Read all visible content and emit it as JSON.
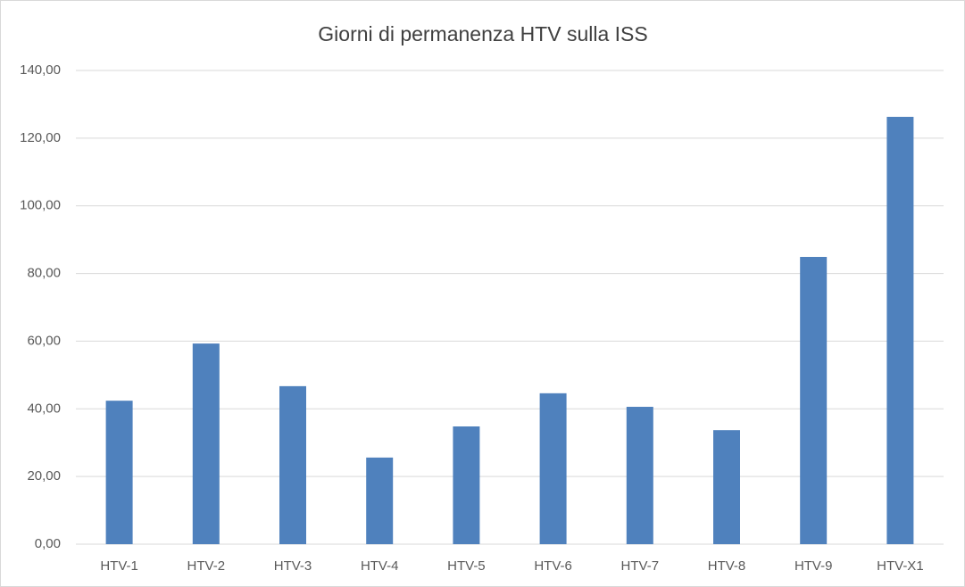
{
  "chart_data": {
    "type": "bar",
    "title": "Giorni di permanenza HTV sulla ISS",
    "categories": [
      "HTV-1",
      "HTV-2",
      "HTV-3",
      "HTV-4",
      "HTV-5",
      "HTV-6",
      "HTV-7",
      "HTV-8",
      "HTV-9",
      "HTV-X1"
    ],
    "values": [
      42.4,
      59.3,
      46.7,
      25.6,
      34.8,
      44.6,
      40.6,
      33.7,
      84.9,
      126.3
    ],
    "color": "#4f81bd",
    "ylim": [
      0,
      140
    ],
    "yticks": [
      {
        "value": 0,
        "label": "0,00"
      },
      {
        "value": 20,
        "label": "20,00"
      },
      {
        "value": 40,
        "label": "40,00"
      },
      {
        "value": 60,
        "label": "60,00"
      },
      {
        "value": 80,
        "label": "80,00"
      },
      {
        "value": 100,
        "label": "100,00"
      },
      {
        "value": 120,
        "label": "120,00"
      },
      {
        "value": 140,
        "label": "140,00"
      }
    ],
    "grid": true
  }
}
